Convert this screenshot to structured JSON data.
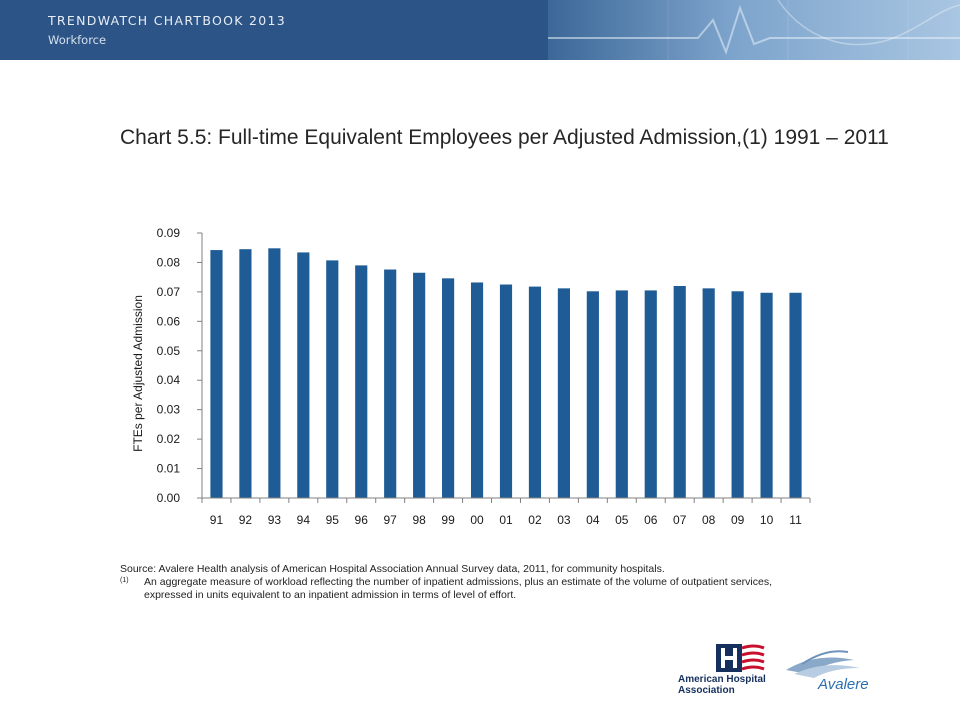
{
  "header": {
    "title": "TRENDWATCH CHARTBOOK 2013",
    "subtitle": "Workforce"
  },
  "chart_data": {
    "type": "bar",
    "title": "Chart 5.5: Full-time Equivalent Employees per Adjusted Admission,(1) 1991 – 2011",
    "xlabel": "",
    "ylabel": "FTEs per Adjusted  Admission",
    "ylim": [
      0,
      0.09
    ],
    "yticks": [
      "0.00",
      "0.01",
      "0.02",
      "0.03",
      "0.04",
      "0.05",
      "0.06",
      "0.07",
      "0.08",
      "0.09"
    ],
    "categories": [
      "91",
      "92",
      "93",
      "94",
      "95",
      "96",
      "97",
      "98",
      "99",
      "00",
      "01",
      "02",
      "03",
      "04",
      "05",
      "06",
      "07",
      "08",
      "09",
      "10",
      "11"
    ],
    "values": [
      0.0842,
      0.0845,
      0.0848,
      0.0834,
      0.0807,
      0.079,
      0.0776,
      0.0765,
      0.0746,
      0.0732,
      0.0725,
      0.0718,
      0.0712,
      0.0702,
      0.0705,
      0.0705,
      0.072,
      0.0712,
      0.0702,
      0.0697,
      0.0697
    ],
    "bar_color": "#1f5b94",
    "grid": false
  },
  "notes": {
    "source": "Source: Avalere Health analysis of American Hospital Association Annual Survey data, 2011, for community hospitals.",
    "footnote_mark": "(1)",
    "footnote": "An aggregate measure of workload reflecting the number of inpatient admissions, plus an estimate of the volume of outpatient services, expressed in units equivalent to an inpatient admission in terms of level of effort."
  },
  "logos": {
    "aha": "American Hospital Association",
    "avalere": "Avalere"
  },
  "colors": {
    "banner": "#2c5486",
    "bars": "#1f5b94",
    "aha_blue": "#16305e",
    "aha_red": "#c8102e"
  }
}
